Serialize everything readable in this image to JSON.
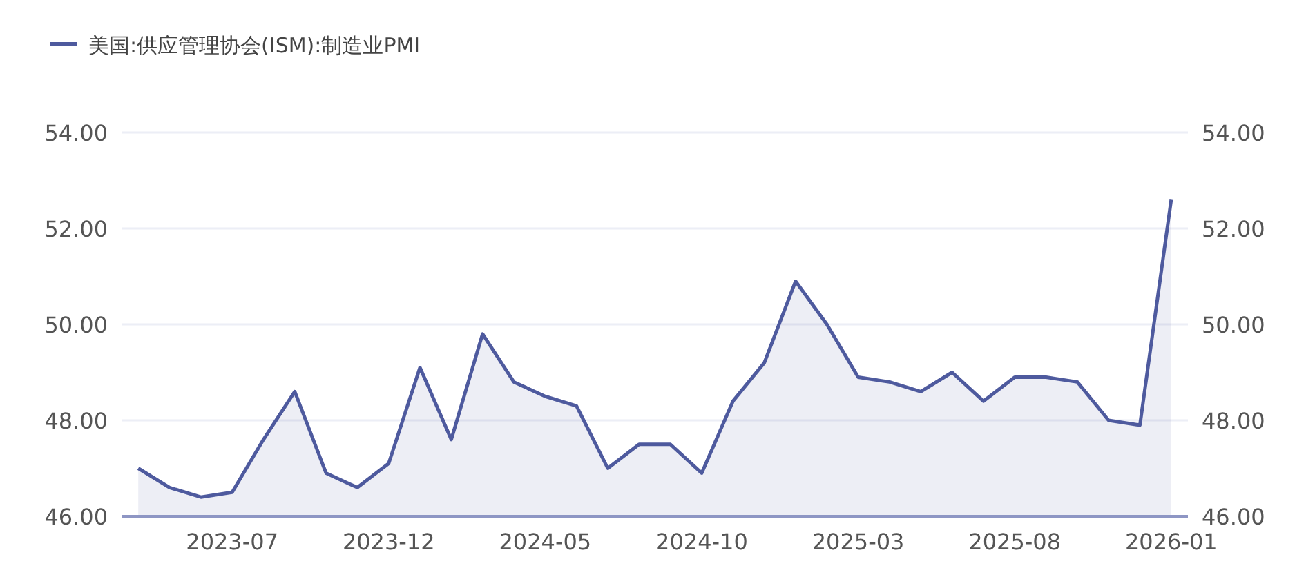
{
  "chart_data": {
    "type": "area",
    "series": [
      {
        "name": "美国:供应管理协会(ISM):制造业PMI",
        "color": "#4e5a9e",
        "values": [
          47.0,
          46.6,
          46.4,
          46.5,
          47.6,
          48.6,
          46.9,
          46.6,
          47.1,
          49.1,
          47.6,
          49.8,
          48.8,
          48.5,
          48.3,
          47.0,
          47.5,
          47.5,
          46.9,
          48.4,
          49.2,
          50.9,
          50.0,
          48.9,
          48.8,
          48.6,
          49.0,
          48.4,
          48.9,
          48.9,
          48.8,
          48.0,
          47.9,
          52.6
        ]
      }
    ],
    "x": [
      "2023-04",
      "2023-05",
      "2023-06",
      "2023-07",
      "2023-08",
      "2023-09",
      "2023-10",
      "2023-11",
      "2023-12",
      "2024-01",
      "2024-02",
      "2024-03",
      "2024-04",
      "2024-05",
      "2024-06",
      "2024-07",
      "2024-08",
      "2024-09",
      "2024-10",
      "2024-11",
      "2024-12",
      "2025-01",
      "2025-02",
      "2025-03",
      "2025-04",
      "2025-05",
      "2025-06",
      "2025-07",
      "2025-08",
      "2025-09",
      "2025-10",
      "2025-11",
      "2025-12",
      "2026-01"
    ],
    "xlim": [
      "2023-03-15",
      "2026-01-17"
    ],
    "xticks": [
      {
        "value": "2023-07",
        "label": "2023-07"
      },
      {
        "value": "2023-12",
        "label": "2023-12"
      },
      {
        "value": "2024-05",
        "label": "2024-05"
      },
      {
        "value": "2024-10",
        "label": "2024-10"
      },
      {
        "value": "2025-03",
        "label": "2025-03"
      },
      {
        "value": "2025-08",
        "label": "2025-08"
      },
      {
        "value": "2026-01",
        "label": "2026-01"
      }
    ],
    "ylim": [
      46,
      54
    ],
    "yticks": [
      {
        "value": 46,
        "label": "46.00"
      },
      {
        "value": 48,
        "label": "48.00"
      },
      {
        "value": 50,
        "label": "50.00"
      },
      {
        "value": 52,
        "label": "52.00"
      },
      {
        "value": 54,
        "label": "54.00"
      }
    ],
    "y2lim": [
      46,
      54
    ],
    "y2ticks": [
      {
        "value": 46,
        "label": "46.00"
      },
      {
        "value": 48,
        "label": "48.00"
      },
      {
        "value": 50,
        "label": "50.00"
      },
      {
        "value": 52,
        "label": "52.00"
      },
      {
        "value": 54,
        "label": "54.00"
      }
    ],
    "grid": "y",
    "legend": "top left",
    "marker": "none",
    "line_style": "solid"
  }
}
